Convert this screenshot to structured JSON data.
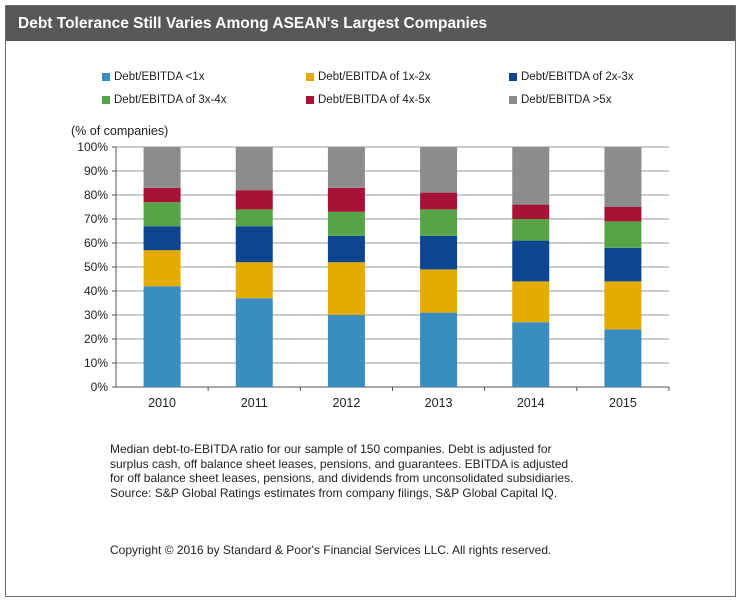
{
  "title": "Debt Tolerance Still Varies Among ASEAN's  Largest Companies",
  "chart_data": {
    "type": "bar",
    "stacked": true,
    "categories": [
      "2010",
      "2011",
      "2012",
      "2013",
      "2014",
      "2015"
    ],
    "ylabel": "(% of companies)",
    "ylim": [
      0,
      100
    ],
    "yticks": [
      "0%",
      "10%",
      "20%",
      "30%",
      "40%",
      "50%",
      "60%",
      "70%",
      "80%",
      "90%",
      "100%"
    ],
    "series": [
      {
        "name": "Debt/EBITDA <1x",
        "color": "#3a8dbf",
        "values": [
          42,
          37,
          30,
          31,
          27,
          24
        ]
      },
      {
        "name": "Debt/EBITDA of 1x-2x",
        "color": "#e5ac00",
        "values": [
          15,
          15,
          22,
          18,
          17,
          20
        ]
      },
      {
        "name": "Debt/EBITDA of 2x-3x",
        "color": "#0e4590",
        "values": [
          10,
          15,
          11,
          14,
          17,
          14
        ]
      },
      {
        "name": "Debt/EBITDA of 3x-4x",
        "color": "#56a447",
        "values": [
          10,
          7,
          10,
          11,
          9,
          11
        ]
      },
      {
        "name": "Debt/EBITDA of 4x-5x",
        "color": "#a81237",
        "values": [
          6,
          8,
          10,
          7,
          6,
          6
        ]
      },
      {
        "name": "Debt/EBITDA >5x",
        "color": "#8c8c8c",
        "values": [
          17,
          18,
          17,
          19,
          24,
          25
        ]
      }
    ],
    "legend_position": "top",
    "grid": true
  },
  "notes": {
    "line1": "Median debt-to-EBITDA ratio for our sample of 150 companies. Debt is adjusted for",
    "line2": "surplus cash, off balance sheet leases, pensions, and guarantees. EBITDA is   adjusted",
    "line3": "for off balance sheet leases, pensions, and dividends from  unconsolidated subsidiaries.",
    "line4": "Source: S&P Global Ratings estimates from company  filings, S&P Global Capital IQ."
  },
  "copyright": "Copyright © 2016 by Standard & Poor's Financial Services LLC. All rights reserved."
}
